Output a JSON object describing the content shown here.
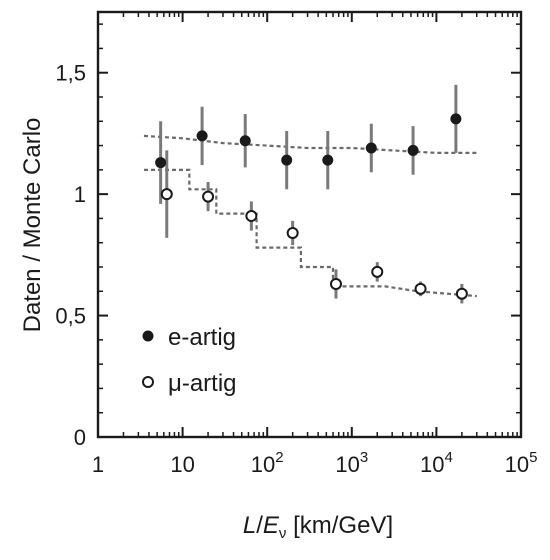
{
  "chart_data": {
    "type": "scatter",
    "xscale": "log",
    "xlim": [
      1,
      100000
    ],
    "ylim": [
      0,
      1.75
    ],
    "grid": false,
    "legend_position": "bottom-left",
    "xlabel": {
      "var_L": "L",
      "slash": "/",
      "var_E": "E",
      "sub": "ν",
      "unit": " [km/GeV]"
    },
    "ylabel": "Daten / Monte Carlo",
    "x_tick_labels": [
      {
        "x": 1,
        "base": "1",
        "exp": ""
      },
      {
        "x": 10,
        "base": "10",
        "exp": ""
      },
      {
        "x": 100,
        "base": "10",
        "exp": "2"
      },
      {
        "x": 1000,
        "base": "10",
        "exp": "3"
      },
      {
        "x": 10000,
        "base": "10",
        "exp": "4"
      },
      {
        "x": 100000,
        "base": "10",
        "exp": "5"
      }
    ],
    "y_tick_labels": [
      {
        "y": 0,
        "label": "0"
      },
      {
        "y": 0.5,
        "label": "0,5"
      },
      {
        "y": 1,
        "label": "1"
      },
      {
        "y": 1.5,
        "label": "1,5"
      }
    ],
    "series": [
      {
        "name": "e-artig",
        "marker": "filled-circle",
        "points": [
          {
            "x": 5.5,
            "y": 1.13,
            "err": 0.17
          },
          {
            "x": 17,
            "y": 1.24,
            "err": 0.12
          },
          {
            "x": 55,
            "y": 1.22,
            "err": 0.11
          },
          {
            "x": 170,
            "y": 1.14,
            "err": 0.12
          },
          {
            "x": 520,
            "y": 1.14,
            "err": 0.12
          },
          {
            "x": 1700,
            "y": 1.19,
            "err": 0.1
          },
          {
            "x": 5300,
            "y": 1.18,
            "err": 0.1
          },
          {
            "x": 17000,
            "y": 1.31,
            "err": 0.14
          }
        ],
        "prediction": [
          [
            3.5,
            1.24
          ],
          [
            10,
            1.23
          ],
          [
            30,
            1.21
          ],
          [
            100,
            1.2
          ],
          [
            300,
            1.19
          ],
          [
            1000,
            1.19
          ],
          [
            3000,
            1.18
          ],
          [
            10000,
            1.17
          ],
          [
            30000,
            1.17
          ]
        ]
      },
      {
        "name": "μ-artig",
        "marker": "open-circle",
        "points": [
          {
            "x": 6.5,
            "y": 1.0,
            "err": 0.18
          },
          {
            "x": 20,
            "y": 0.99,
            "err": 0.06
          },
          {
            "x": 65,
            "y": 0.91,
            "err": 0.06
          },
          {
            "x": 200,
            "y": 0.84,
            "err": 0.05
          },
          {
            "x": 650,
            "y": 0.63,
            "err": 0.06
          },
          {
            "x": 2000,
            "y": 0.68,
            "err": 0.04
          },
          {
            "x": 6500,
            "y": 0.61,
            "err": 0.03
          },
          {
            "x": 20000,
            "y": 0.59,
            "err": 0.04
          }
        ],
        "prediction": [
          [
            3.5,
            1.1
          ],
          [
            12,
            1.1
          ],
          [
            12,
            1.02
          ],
          [
            25,
            1.02
          ],
          [
            25,
            0.92
          ],
          [
            75,
            0.92
          ],
          [
            75,
            0.78
          ],
          [
            250,
            0.78
          ],
          [
            250,
            0.7
          ],
          [
            600,
            0.7
          ],
          [
            600,
            0.62
          ],
          [
            2500,
            0.62
          ],
          [
            6000,
            0.6
          ],
          [
            30000,
            0.58
          ]
        ]
      }
    ]
  },
  "legend": {
    "items": [
      {
        "marker": "filled-circle",
        "label": "e-artig"
      },
      {
        "marker": "open-circle",
        "label": "μ-artig"
      }
    ]
  },
  "colors": {
    "ink": "#1a1a1a",
    "errorbar": "#7a7a7a",
    "prediction": "#6a6a6a",
    "background": "#ffffff"
  }
}
